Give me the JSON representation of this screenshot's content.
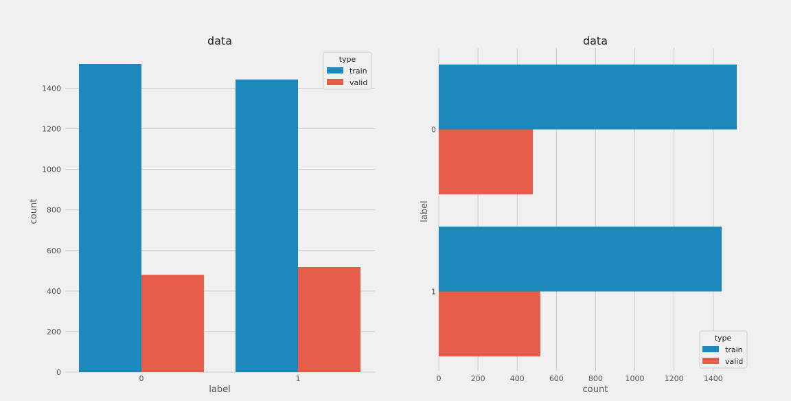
{
  "chart_data": [
    {
      "type": "bar",
      "orientation": "vertical",
      "title": "data",
      "xlabel": "label",
      "ylabel": "count",
      "categories": [
        "0",
        "1"
      ],
      "series": [
        {
          "name": "train",
          "values": [
            1520,
            1443
          ],
          "color": "#1c88bb"
        },
        {
          "name": "valid",
          "values": [
            480,
            518
          ],
          "color": "#e65e49"
        }
      ],
      "ylim": [
        0,
        1520
      ],
      "yticks": [
        "0",
        "200",
        "400",
        "600",
        "800",
        "1000",
        "1200",
        "1400"
      ],
      "grid": "horizontal",
      "legend": {
        "title": "type",
        "placement": "top-right"
      }
    },
    {
      "type": "bar",
      "orientation": "horizontal",
      "title": "data",
      "xlabel": "count",
      "ylabel": "label",
      "categories": [
        "0",
        "1"
      ],
      "series": [
        {
          "name": "train",
          "values": [
            1520,
            1443
          ],
          "color": "#1c88bb"
        },
        {
          "name": "valid",
          "values": [
            480,
            518
          ],
          "color": "#e65e49"
        }
      ],
      "xlim": [
        0,
        1520
      ],
      "xticks": [
        "0",
        "200",
        "400",
        "600",
        "800",
        "1000",
        "1200",
        "1400"
      ],
      "grid": "vertical",
      "legend": {
        "title": "type",
        "placement": "bottom-right"
      }
    }
  ]
}
